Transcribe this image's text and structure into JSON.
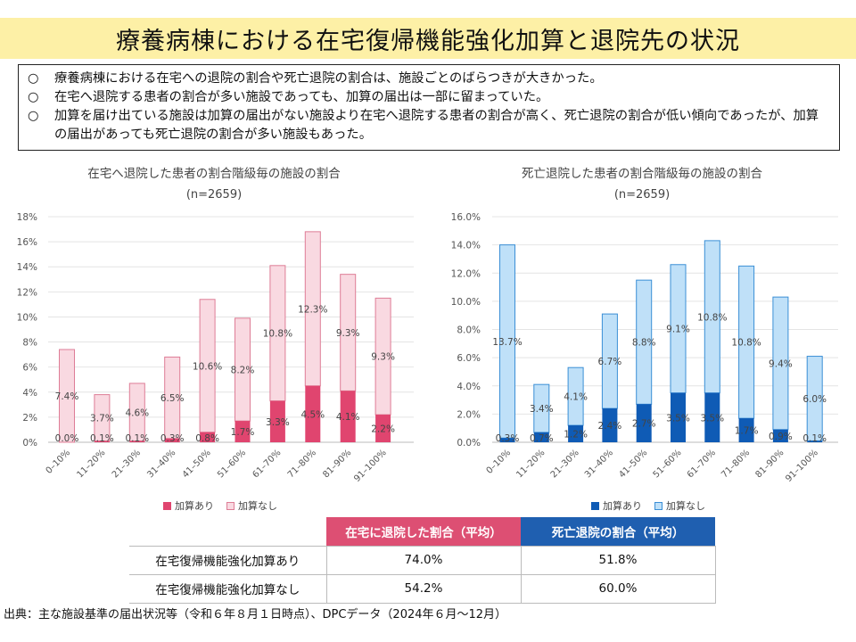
{
  "title": "療養病棟における在宅復帰機能強化加算と退院先の状況",
  "summary": [
    {
      "mark": "○",
      "text": "療養病棟における在宅への退院の割合や死亡退院の割合は、施設ごとのばらつきが大きかった。"
    },
    {
      "mark": "○",
      "text": "在宅へ退院する患者の割合が多い施設であっても、加算の届出は一部に留まっていた。"
    },
    {
      "mark": "○",
      "text": "加算を届け出ている施設は加算の届出がない施設より在宅へ退院する患者の割合が高く、死亡退院の割合が低い傾向であったが、加算の届出があっても死亡退院の割合が多い施設もあった。"
    }
  ],
  "colors": {
    "pink_dark": "#e0456f",
    "pink_light": "#f9d9e1",
    "pink_border": "#de7d96",
    "blue_dark": "#0f5bb5",
    "blue_light": "#bfe0f8",
    "blue_border": "#3b8fd6",
    "title_bg": "#fdf0a6",
    "header_pink": "#dd4f73",
    "header_blue": "#1f5fb0"
  },
  "chart_data": [
    {
      "type": "bar",
      "stacked": true,
      "title": "在宅へ退院した患者の割合階級毎の施設の割合",
      "subtitle": "(n=2659)",
      "categories": [
        "0–10%",
        "11–20%",
        "21–30%",
        "31–40%",
        "41–50%",
        "51–60%",
        "61–70%",
        "71–80%",
        "81–90%",
        "91–100%"
      ],
      "series": [
        {
          "name": "加算あり",
          "values": [
            0.0,
            0.1,
            0.1,
            0.3,
            0.8,
            1.7,
            3.3,
            4.5,
            4.1,
            2.2
          ],
          "labels": [
            "0.0%",
            "0.1%",
            "0.1%",
            "0.3%",
            "0.8%",
            "1.7%",
            "3.3%",
            "4.5%",
            "4.1%",
            "2.2%"
          ]
        },
        {
          "name": "加算なし",
          "values": [
            7.4,
            3.7,
            4.6,
            6.5,
            10.6,
            8.2,
            10.8,
            12.3,
            9.3,
            9.3
          ],
          "labels": [
            "7.4%",
            "3.7%",
            "4.6%",
            "6.5%",
            "10.6%",
            "8.2%",
            "10.8%",
            "12.3%",
            "9.3%",
            "9.3%"
          ]
        }
      ],
      "ylim": [
        0,
        18
      ],
      "yticks": [
        "0%",
        "2%",
        "4%",
        "6%",
        "8%",
        "10%",
        "12%",
        "14%",
        "16%",
        "18%"
      ],
      "legend": [
        "加算あり",
        "加算なし"
      ],
      "legend_position": "bottom"
    },
    {
      "type": "bar",
      "stacked": true,
      "title": "死亡退院した患者の割合階級毎の施設の割合",
      "subtitle": "(n=2659)",
      "categories": [
        "0–10%",
        "11–20%",
        "21–30%",
        "31–40%",
        "41–50%",
        "51–60%",
        "61–70%",
        "71–80%",
        "81–90%",
        "91–100%"
      ],
      "series": [
        {
          "name": "加算あり",
          "values": [
            0.3,
            0.7,
            1.2,
            2.4,
            2.7,
            3.5,
            3.5,
            1.7,
            0.9,
            0.1
          ],
          "labels": [
            "0.3%",
            "0.7%",
            "1.2%",
            "2.4%",
            "2.7%",
            "3.5%",
            "3.5%",
            "1.7%",
            "0.9%",
            "0.1%"
          ]
        },
        {
          "name": "加算なし",
          "values": [
            13.7,
            3.4,
            4.1,
            6.7,
            8.8,
            9.1,
            10.8,
            10.8,
            9.4,
            6.0
          ],
          "labels": [
            "13.7%",
            "3.4%",
            "4.1%",
            "6.7%",
            "8.8%",
            "9.1%",
            "10.8%",
            "10.8%",
            "9.4%",
            "6.0%"
          ]
        }
      ],
      "ylim": [
        0,
        16
      ],
      "yticks": [
        "0.0%",
        "2.0%",
        "4.0%",
        "6.0%",
        "8.0%",
        "10.0%",
        "12.0%",
        "14.0%",
        "16.0%"
      ],
      "legend": [
        "加算あり",
        "加算なし"
      ],
      "legend_position": "bottom"
    }
  ],
  "table": {
    "headers": [
      "在宅に退院した割合（平均）",
      "死亡退院の割合（平均）"
    ],
    "rows": [
      {
        "label": "在宅復帰機能強化加算あり",
        "values": [
          "74.0%",
          "51.8%"
        ]
      },
      {
        "label": "在宅復帰機能強化加算なし",
        "values": [
          "54.2%",
          "60.0%"
        ]
      }
    ]
  },
  "source": "出典：主な施設基準の届出状況等（令和６年８月１日時点）、DPCデータ（2024年６月～12月）"
}
